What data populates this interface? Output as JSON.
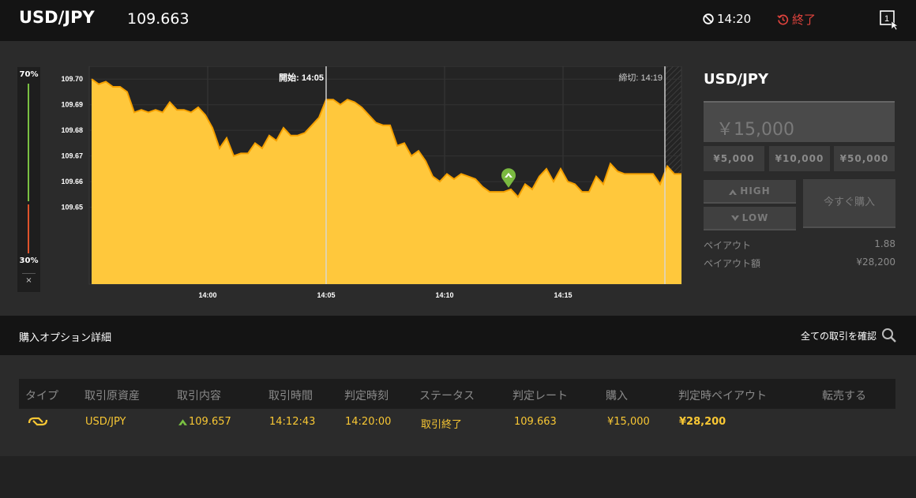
{
  "header": {
    "asset": "USD/JPY",
    "rate": "109.663",
    "time_left": "14:20",
    "end_label": "終了"
  },
  "sentiment": {
    "high_label": "70%",
    "low_label": "30%",
    "high_pct": 70,
    "low_pct": 30,
    "close_label": "×",
    "high_color": "#7ac142",
    "low_color": "#e0532b"
  },
  "chart_data": {
    "type": "area",
    "color": "#ffc83c",
    "line_color": "#f5a000",
    "ylim": [
      109.62,
      109.705
    ],
    "y_ticks": [
      109.7,
      109.69,
      109.68,
      109.67,
      109.66,
      109.65
    ],
    "y_tick_labels": [
      "109.70",
      "109.69",
      "109.68",
      "109.67",
      "109.66",
      "109.65"
    ],
    "x_range_min": [
      13.5,
      13.8
    ],
    "x_ticks": [
      14.0,
      14.05,
      14.1,
      14.15
    ],
    "x_tick_minutes": [
      0,
      5,
      10,
      15
    ],
    "x_tick_labels": [
      "14:00",
      "14:05",
      "14:10",
      "14:15"
    ],
    "start_minute": 5,
    "start_label": "開始: 14:05",
    "end_minute": 19.3,
    "end_label": "締切: 14:19",
    "marker_minute": 12.7,
    "marker_value": 109.657,
    "marker_color": "#7ab940",
    "x_minutes": [
      -4.9,
      -4.6,
      -4.3,
      -4.0,
      -3.7,
      -3.4,
      -3.1,
      -2.8,
      -2.5,
      -2.2,
      -1.9,
      -1.6,
      -1.3,
      -1.0,
      -0.7,
      -0.4,
      -0.1,
      0.2,
      0.5,
      0.8,
      1.1,
      1.4,
      1.7,
      2.0,
      2.3,
      2.6,
      2.9,
      3.2,
      3.5,
      3.8,
      4.1,
      4.4,
      4.7,
      5.0,
      5.3,
      5.6,
      5.9,
      6.2,
      6.5,
      6.8,
      7.1,
      7.4,
      7.7,
      8.0,
      8.3,
      8.6,
      8.9,
      9.2,
      9.5,
      9.8,
      10.1,
      10.4,
      10.7,
      11.0,
      11.3,
      11.6,
      11.9,
      12.2,
      12.5,
      12.8,
      13.1,
      13.4,
      13.7,
      14.0,
      14.3,
      14.6,
      14.9,
      15.2,
      15.5,
      15.8,
      16.1,
      16.4,
      16.7,
      17.0,
      17.3,
      17.6,
      17.9,
      18.2,
      18.5,
      18.8,
      19.1,
      19.4,
      19.7,
      20.0
    ],
    "values": [
      109.7,
      109.698,
      109.699,
      109.697,
      109.697,
      109.695,
      109.687,
      109.688,
      109.687,
      109.688,
      109.687,
      109.691,
      109.688,
      109.688,
      109.687,
      109.689,
      109.686,
      109.681,
      109.673,
      109.677,
      109.67,
      109.671,
      109.671,
      109.675,
      109.673,
      109.678,
      109.676,
      109.681,
      109.678,
      109.678,
      109.679,
      109.682,
      109.685,
      109.692,
      109.692,
      109.69,
      109.692,
      109.691,
      109.689,
      109.686,
      109.683,
      109.682,
      109.682,
      109.674,
      109.675,
      109.67,
      109.672,
      109.668,
      109.662,
      109.66,
      109.663,
      109.661,
      109.663,
      109.662,
      109.661,
      109.658,
      109.656,
      109.656,
      109.656,
      109.657,
      109.654,
      109.659,
      109.657,
      109.662,
      109.665,
      109.66,
      109.665,
      109.66,
      109.659,
      109.656,
      109.656,
      109.662,
      109.659,
      109.667,
      109.664,
      109.663,
      109.663,
      109.663,
      109.663,
      109.663,
      109.659,
      109.666,
      109.663,
      109.663
    ]
  },
  "panel": {
    "title": "USD/JPY",
    "amount": "￥15,000",
    "quick_amounts": [
      "¥5,000",
      "¥10,000",
      "¥50,000"
    ],
    "high_label": "HIGH",
    "low_label": "LOW",
    "buy_now": "今すぐ購入",
    "payout_label": "ペイアウト",
    "payout_value": "1.88",
    "payout_amount_label": "ペイアウト額",
    "payout_amount_value": "¥28,200"
  },
  "details": {
    "title": "購入オプション詳細",
    "view_all": "全ての取引を確認"
  },
  "table": {
    "headers": [
      "タイプ",
      "取引原資産",
      "取引内容",
      "取引時間",
      "判定時刻",
      "ステータス",
      "判定レート",
      "購入",
      "判定時ペイアウト",
      "転売する"
    ],
    "row": {
      "asset": "USD/JPY",
      "content": "109.657",
      "trade_time": "14:12:43",
      "judge_time": "14:20:00",
      "status": "取引終了",
      "judge_rate": "109.663",
      "purchase": "¥15,000",
      "payout": "¥28,200"
    }
  }
}
